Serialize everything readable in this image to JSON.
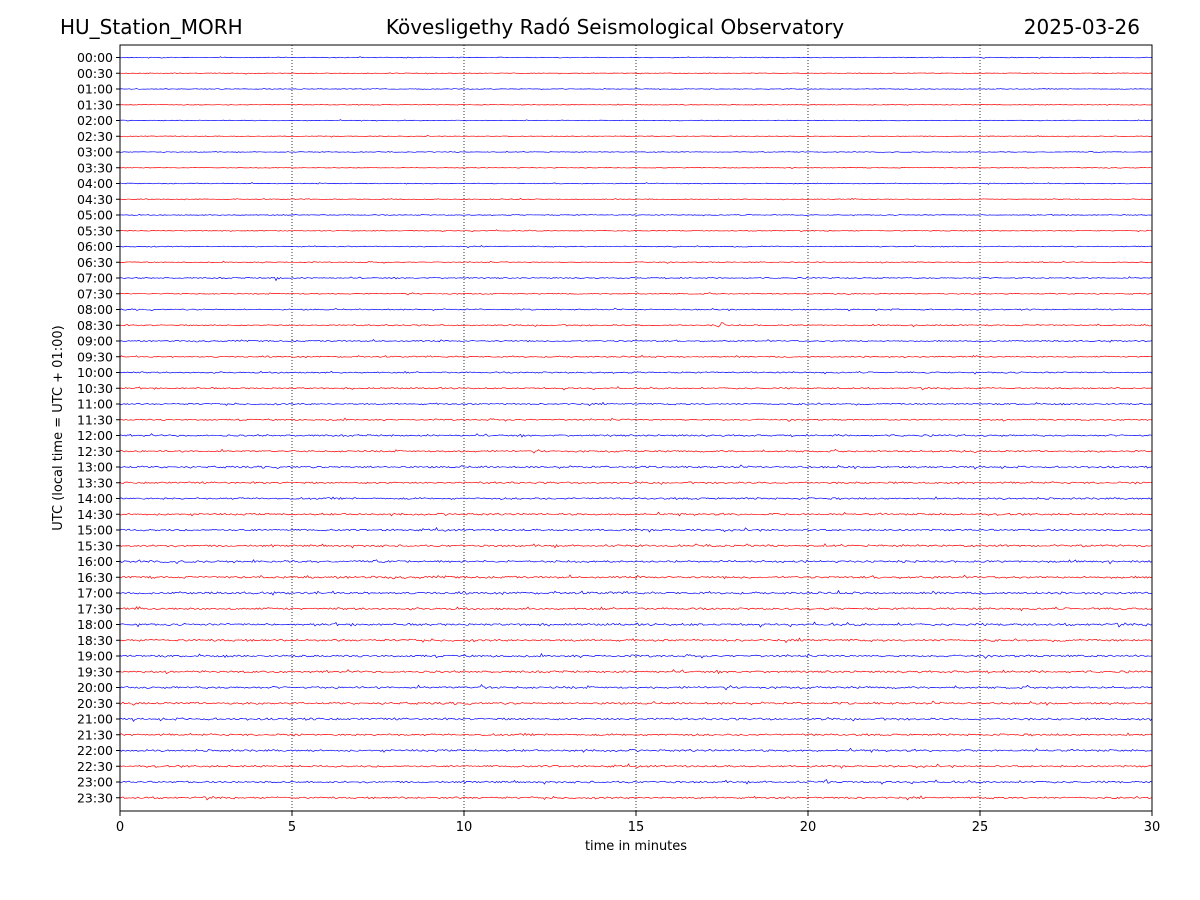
{
  "header": {
    "station": "HU_Station_MORH",
    "observatory": "Kövesligethy Radó Seismological Observatory",
    "date": "2025-03-26"
  },
  "colors": {
    "trace_a": "#0000ff",
    "trace_b": "#ff0000",
    "grid": "#000000"
  },
  "chart_data": {
    "type": "line",
    "title": "Kövesligethy Radó Seismological Observatory",
    "xlabel": "time in minutes",
    "ylabel": "UTC (local time = UTC + 01:00)",
    "xlim": [
      0,
      30
    ],
    "xticks": [
      0,
      5,
      10,
      15,
      20,
      25,
      30
    ],
    "grid": "vertical dotted at each x tick",
    "row_labels": [
      "00:00",
      "00:30",
      "01:00",
      "01:30",
      "02:00",
      "02:30",
      "03:00",
      "03:30",
      "04:00",
      "04:30",
      "05:00",
      "05:30",
      "06:00",
      "06:30",
      "07:00",
      "07:30",
      "08:00",
      "08:30",
      "09:00",
      "09:30",
      "10:00",
      "10:30",
      "11:00",
      "11:30",
      "12:00",
      "12:30",
      "13:00",
      "13:30",
      "14:00",
      "14:30",
      "15:00",
      "15:30",
      "16:00",
      "16:30",
      "17:00",
      "17:30",
      "18:00",
      "18:30",
      "19:00",
      "19:30",
      "20:00",
      "20:30",
      "21:00",
      "21:30",
      "22:00",
      "22:30",
      "23:00",
      "23:30"
    ],
    "row_colors": "alternating blue/red starting with blue",
    "noise_level": [
      0.35,
      0.3,
      0.3,
      0.3,
      0.3,
      0.3,
      0.3,
      0.3,
      0.35,
      0.35,
      0.35,
      0.35,
      0.4,
      0.4,
      0.45,
      0.45,
      0.5,
      0.55,
      0.55,
      0.55,
      0.6,
      0.6,
      0.6,
      0.6,
      0.7,
      0.7,
      0.75,
      0.75,
      0.75,
      0.75,
      0.75,
      0.8,
      0.85,
      0.85,
      0.9,
      0.85,
      0.9,
      0.85,
      0.85,
      0.85,
      0.85,
      0.85,
      0.85,
      0.8,
      0.8,
      0.75,
      0.75,
      0.75
    ],
    "events": [
      {
        "row": "07:00",
        "minute": 4.5,
        "amplitude": 3
      },
      {
        "row": "08:30",
        "minute": 17.4,
        "amplitude": 5
      },
      {
        "row": "00:00",
        "minute": 2.9,
        "amplitude": 1.2
      },
      {
        "row": "00:00",
        "minute": 3.8,
        "amplitude": 1.1
      },
      {
        "row": "20:00",
        "minute": 10.5,
        "amplitude": 1.5
      },
      {
        "row": "23:00",
        "minute": 20.5,
        "amplitude": 1.5
      }
    ]
  }
}
